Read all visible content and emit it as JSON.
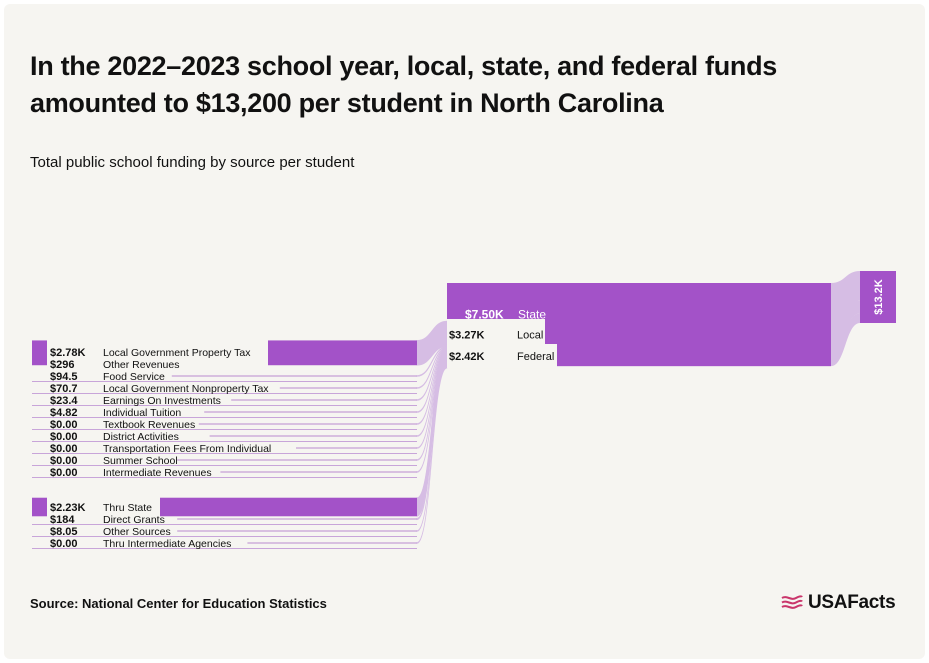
{
  "title": "In the 2022–2023 school year, local, state, and federal funds amounted to $13,200 per student in North Carolina",
  "subtitle": "Total public school funding by source per student",
  "source": "Source: National Center for Education Statistics",
  "brand": "USAFacts",
  "colors": {
    "accent": "#a352c8",
    "flow": "#d6bde4",
    "leader": "#b98ad0",
    "background": "#f6f5f1",
    "text": "#111111"
  },
  "chart_data": {
    "type": "sankey",
    "total": {
      "label": "$13.2K",
      "value": 13200
    },
    "middle": [
      {
        "name": "State",
        "label": "$7.50K",
        "value": 7500
      },
      {
        "name": "Local",
        "label": "$3.27K",
        "value": 3270
      },
      {
        "name": "Federal",
        "label": "$2.42K",
        "value": 2420
      }
    ],
    "sources": [
      {
        "name": "Local Government Property Tax",
        "label": "$2.78K",
        "value": 2780,
        "target": "Local"
      },
      {
        "name": "Other Revenues",
        "label": "$296",
        "value": 296,
        "target": "Local"
      },
      {
        "name": "Food Service",
        "label": "$94.5",
        "value": 94.5,
        "target": "Local"
      },
      {
        "name": "Local Government Nonproperty Tax",
        "label": "$70.7",
        "value": 70.7,
        "target": "Local"
      },
      {
        "name": "Earnings On Investments",
        "label": "$23.4",
        "value": 23.4,
        "target": "Local"
      },
      {
        "name": "Individual Tuition",
        "label": "$4.82",
        "value": 4.82,
        "target": "Local"
      },
      {
        "name": "Textbook Revenues",
        "label": "$0.00",
        "value": 0,
        "target": "Local"
      },
      {
        "name": "District Activities",
        "label": "$0.00",
        "value": 0,
        "target": "Local"
      },
      {
        "name": "Transportation Fees From Individual",
        "label": "$0.00",
        "value": 0,
        "target": "Local"
      },
      {
        "name": "Summer School",
        "label": "$0.00",
        "value": 0,
        "target": "Local"
      },
      {
        "name": "Intermediate Revenues",
        "label": "$0.00",
        "value": 0,
        "target": "Local"
      },
      {
        "name": "Thru State",
        "label": "$2.23K",
        "value": 2230,
        "target": "Federal"
      },
      {
        "name": "Direct Grants",
        "label": "$184",
        "value": 184,
        "target": "Federal"
      },
      {
        "name": "Other Sources",
        "label": "$8.05",
        "value": 8.05,
        "target": "Federal"
      },
      {
        "name": "Thru Intermediate Agencies",
        "label": "$0.00",
        "value": 0,
        "target": "Federal"
      }
    ]
  }
}
